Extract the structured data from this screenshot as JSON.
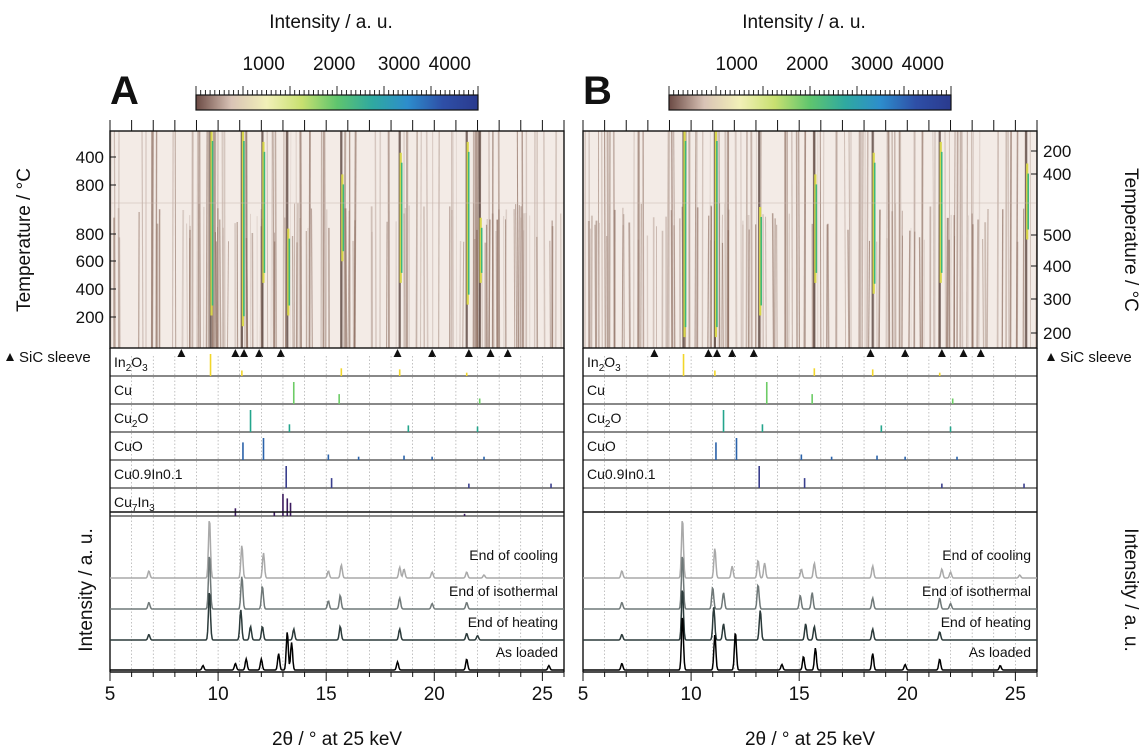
{
  "colors": {
    "frame": "#111111",
    "bg_film": "#f3ebe6",
    "streak": "#8a6a5c",
    "grid": "#9a9a9a",
    "colorbar": [
      "#6b4a44",
      "#d9c3b6",
      "#f2f0b8",
      "#c8e070",
      "#5fc56e",
      "#2fa9a0",
      "#2d8dcc",
      "#2e4fa7",
      "#2a3a8e"
    ],
    "phase_colors": {
      "In2O3": "#f2d62a",
      "Cu": "#6dcc66",
      "Cu2O": "#24a58c",
      "CuO": "#2a62a9",
      "Cu09In01": "#3a3f8e",
      "Cu7In3": "#3b1a5e"
    },
    "patterns": [
      "#a9a9a9",
      "#6f7878",
      "#2b3a3a",
      "#000000"
    ]
  },
  "chart_data": [
    {
      "panel": "A",
      "type": "heatmap",
      "colorbar_title": "Intensity / a. u.",
      "colorbar_ticks": [
        "1000",
        "2000",
        "3000",
        "4000"
      ],
      "ylabel": "Temperature / °C",
      "ylabel_side": "left",
      "y_tick_labels_cool": [
        "400",
        "800"
      ],
      "y_tick_labels_heat": [
        "800",
        "600",
        "400",
        "200"
      ],
      "xlabel": "2θ / ° at 25 keV",
      "x_ticks": [
        "5",
        "10",
        "15",
        "20",
        "25"
      ],
      "xlim": [
        5,
        26
      ],
      "sic_label": "SiC sleeve",
      "sic_positions": [
        8.3,
        10.8,
        11.2,
        11.9,
        12.9,
        18.3,
        19.9,
        21.6,
        22.6,
        23.4
      ],
      "phases": [
        {
          "label": "In",
          "sub": "2",
          "rest": "O",
          "sub2": "3",
          "key": "In2O3",
          "peaks": [
            [
              9.65,
              1.0
            ],
            [
              11.1,
              0.25
            ],
            [
              15.7,
              0.35
            ],
            [
              18.4,
              0.3
            ],
            [
              21.5,
              0.15
            ]
          ]
        },
        {
          "label": "Cu",
          "key": "Cu",
          "peaks": [
            [
              13.5,
              1.0
            ],
            [
              15.6,
              0.45
            ],
            [
              22.1,
              0.25
            ]
          ]
        },
        {
          "label": "Cu",
          "sub": "2",
          "rest": "O",
          "key": "Cu2O",
          "peaks": [
            [
              11.5,
              1.0
            ],
            [
              13.3,
              0.35
            ],
            [
              18.8,
              0.3
            ],
            [
              22.0,
              0.25
            ]
          ]
        },
        {
          "label": "CuO",
          "key": "CuO",
          "peaks": [
            [
              11.15,
              0.8
            ],
            [
              12.1,
              1.0
            ],
            [
              15.1,
              0.25
            ],
            [
              16.5,
              0.15
            ],
            [
              18.6,
              0.2
            ],
            [
              19.9,
              0.15
            ],
            [
              22.3,
              0.15
            ]
          ]
        },
        {
          "label": "Cu0.9In0.1",
          "key": "Cu09In01",
          "peaks": [
            [
              13.15,
              1.0
            ],
            [
              15.25,
              0.45
            ],
            [
              21.6,
              0.2
            ],
            [
              25.4,
              0.2
            ]
          ]
        },
        {
          "label": "Cu",
          "sub": "7",
          "rest": "In",
          "sub2": "3",
          "key": "Cu7In3",
          "peaks": [
            [
              10.8,
              0.35
            ],
            [
              12.6,
              0.2
            ],
            [
              13.0,
              1.0
            ],
            [
              13.2,
              0.8
            ],
            [
              13.35,
              0.6
            ],
            [
              21.4,
              0.1
            ]
          ]
        }
      ],
      "pattern_ylabel": "Intensity / a. u.",
      "pattern_ylabel_side": "left",
      "patterns": [
        {
          "name": "End of cooling",
          "peaks": [
            [
              6.8,
              0.12
            ],
            [
              9.6,
              1.0
            ],
            [
              11.1,
              0.55
            ],
            [
              12.1,
              0.42
            ],
            [
              15.1,
              0.12
            ],
            [
              15.7,
              0.22
            ],
            [
              18.4,
              0.18
            ],
            [
              18.6,
              0.15
            ],
            [
              19.9,
              0.1
            ],
            [
              21.5,
              0.1
            ],
            [
              22.3,
              0.05
            ]
          ]
        },
        {
          "name": "End of isothermal",
          "peaks": [
            [
              6.8,
              0.12
            ],
            [
              9.6,
              1.0
            ],
            [
              11.1,
              0.6
            ],
            [
              12.05,
              0.42
            ],
            [
              15.1,
              0.15
            ],
            [
              15.65,
              0.25
            ],
            [
              18.4,
              0.2
            ],
            [
              19.9,
              0.1
            ],
            [
              21.5,
              0.12
            ]
          ]
        },
        {
          "name": "End of heating",
          "peaks": [
            [
              6.8,
              0.1
            ],
            [
              9.6,
              0.9
            ],
            [
              11.05,
              0.55
            ],
            [
              11.5,
              0.25
            ],
            [
              12.05,
              0.25
            ],
            [
              13.5,
              0.2
            ],
            [
              15.65,
              0.25
            ],
            [
              18.4,
              0.2
            ],
            [
              21.5,
              0.12
            ],
            [
              22.0,
              0.08
            ]
          ]
        },
        {
          "name": "As loaded",
          "peaks": [
            [
              9.3,
              0.08
            ],
            [
              10.8,
              0.12
            ],
            [
              11.3,
              0.2
            ],
            [
              12.0,
              0.2
            ],
            [
              12.8,
              0.3
            ],
            [
              13.2,
              0.7
            ],
            [
              13.4,
              0.5
            ],
            [
              18.3,
              0.15
            ],
            [
              21.5,
              0.2
            ],
            [
              25.3,
              0.08
            ]
          ]
        }
      ],
      "hot_lines": [
        [
          9.65,
          0.0,
          0.85
        ],
        [
          11.1,
          0.0,
          0.9
        ],
        [
          12.05,
          0.05,
          0.7
        ],
        [
          13.2,
          0.45,
          0.85
        ],
        [
          15.7,
          0.2,
          0.6
        ],
        [
          18.4,
          0.1,
          0.7
        ],
        [
          21.5,
          0.05,
          0.8
        ],
        [
          22.1,
          0.4,
          0.7
        ]
      ]
    },
    {
      "panel": "B",
      "type": "heatmap",
      "colorbar_title": "Intensity / a. u.",
      "colorbar_ticks": [
        "1000",
        "2000",
        "3000",
        "4000"
      ],
      "ylabel": "Temperature / °C",
      "ylabel_side": "right",
      "y_tick_labels_cool": [
        "200",
        "400"
      ],
      "y_tick_labels_heat": [
        "500",
        "400",
        "300",
        "200"
      ],
      "xlabel": "2θ / ° at 25 keV",
      "x_ticks": [
        "5",
        "10",
        "15",
        "20",
        "25"
      ],
      "xlim": [
        5,
        26
      ],
      "sic_label": "SiC sleeve",
      "sic_positions": [
        8.3,
        10.8,
        11.2,
        11.9,
        12.9,
        18.3,
        19.9,
        21.6,
        22.6,
        23.4
      ],
      "phases": [
        {
          "label": "In",
          "sub": "2",
          "rest": "O",
          "sub2": "3",
          "key": "In2O3",
          "peaks": [
            [
              9.65,
              1.0
            ],
            [
              11.1,
              0.25
            ],
            [
              15.7,
              0.35
            ],
            [
              18.4,
              0.3
            ],
            [
              21.5,
              0.15
            ]
          ]
        },
        {
          "label": "Cu",
          "key": "Cu",
          "peaks": [
            [
              13.5,
              1.0
            ],
            [
              15.6,
              0.45
            ],
            [
              22.1,
              0.25
            ]
          ]
        },
        {
          "label": "Cu",
          "sub": "2",
          "rest": "O",
          "key": "Cu2O",
          "peaks": [
            [
              11.5,
              1.0
            ],
            [
              13.3,
              0.35
            ],
            [
              18.8,
              0.3
            ],
            [
              22.0,
              0.25
            ]
          ]
        },
        {
          "label": "CuO",
          "key": "CuO",
          "peaks": [
            [
              11.15,
              0.8
            ],
            [
              12.1,
              1.0
            ],
            [
              15.1,
              0.25
            ],
            [
              16.5,
              0.15
            ],
            [
              18.6,
              0.2
            ],
            [
              19.9,
              0.15
            ],
            [
              22.3,
              0.15
            ]
          ]
        },
        {
          "label": "Cu0.9In0.1",
          "key": "Cu09In01",
          "peaks": [
            [
              13.15,
              1.0
            ],
            [
              15.25,
              0.45
            ],
            [
              21.6,
              0.2
            ],
            [
              25.4,
              0.2
            ]
          ]
        }
      ],
      "pattern_ylabel": "Intensity / a. u.",
      "pattern_ylabel_side": "right",
      "patterns": [
        {
          "name": "End of cooling",
          "peaks": [
            [
              6.8,
              0.12
            ],
            [
              9.6,
              1.0
            ],
            [
              11.1,
              0.5
            ],
            [
              11.9,
              0.2
            ],
            [
              13.1,
              0.3
            ],
            [
              13.4,
              0.25
            ],
            [
              15.1,
              0.15
            ],
            [
              15.7,
              0.25
            ],
            [
              18.4,
              0.2
            ],
            [
              21.6,
              0.15
            ],
            [
              22.0,
              0.1
            ],
            [
              25.2,
              0.05
            ]
          ]
        },
        {
          "name": "End of isothermal",
          "peaks": [
            [
              6.8,
              0.12
            ],
            [
              9.6,
              1.0
            ],
            [
              11.0,
              0.4
            ],
            [
              11.5,
              0.3
            ],
            [
              13.1,
              0.45
            ],
            [
              15.05,
              0.25
            ],
            [
              15.6,
              0.3
            ],
            [
              18.4,
              0.2
            ],
            [
              21.5,
              0.2
            ],
            [
              22.0,
              0.1
            ]
          ]
        },
        {
          "name": "End of heating",
          "peaks": [
            [
              6.8,
              0.1
            ],
            [
              9.6,
              0.95
            ],
            [
              11.05,
              0.6
            ],
            [
              11.5,
              0.3
            ],
            [
              13.2,
              0.55
            ],
            [
              15.3,
              0.3
            ],
            [
              15.7,
              0.25
            ],
            [
              18.4,
              0.2
            ],
            [
              21.5,
              0.15
            ]
          ]
        },
        {
          "name": "As loaded",
          "peaks": [
            [
              6.8,
              0.12
            ],
            [
              9.6,
              1.0
            ],
            [
              11.1,
              0.65
            ],
            [
              12.05,
              0.7
            ],
            [
              14.2,
              0.1
            ],
            [
              15.2,
              0.25
            ],
            [
              15.75,
              0.4
            ],
            [
              18.4,
              0.3
            ],
            [
              19.9,
              0.1
            ],
            [
              21.5,
              0.2
            ],
            [
              24.3,
              0.08
            ]
          ]
        }
      ],
      "hot_lines": [
        [
          9.65,
          0.0,
          0.95
        ],
        [
          11.1,
          0.0,
          0.95
        ],
        [
          13.15,
          0.35,
          0.85
        ],
        [
          15.7,
          0.2,
          0.7
        ],
        [
          18.4,
          0.1,
          0.75
        ],
        [
          21.5,
          0.05,
          0.7
        ],
        [
          25.5,
          0.15,
          0.5
        ]
      ]
    }
  ]
}
